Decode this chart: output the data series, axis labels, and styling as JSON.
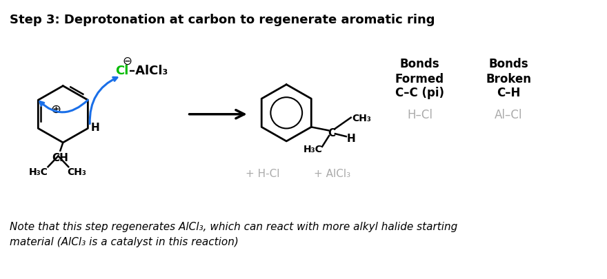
{
  "title": "Step 3: Deprotonation at carbon to regenerate aromatic ring",
  "title_fontsize": 13,
  "title_fontweight": "bold",
  "background_color": "#ffffff",
  "note_text": "Note that this step regenerates AlCl₃, which can react with more alkyl halide starting\nmaterial (AlCl₃ is a catalyst in this reaction)",
  "bonds_formed_header": "Bonds\nFormed",
  "bonds_broken_header": "Bonds\nBroken",
  "bonds_formed_1": "C–C (pi)",
  "bonds_broken_1": "C–H",
  "bonds_formed_2": "H–Cl",
  "bonds_broken_2": "Al–Cl",
  "arrow_color": "#000000",
  "blue_arrow_color": "#1a6fe8",
  "green_color": "#00bb00",
  "gray_color": "#aaaaaa",
  "black_color": "#000000"
}
